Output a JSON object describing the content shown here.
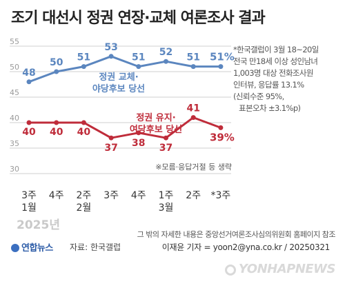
{
  "title": "조기 대선시 정권 연장·교체 여론조사 결과",
  "notes": [
    "*한국갤럽이 3월 18~20일",
    "전국 만18세 이상 성인남녀",
    "1,003명 대상 전화조사원",
    "인터뷰, 응답률 13.1%",
    "(신뢰수준 95%,",
    "표본오차 ±3.1%p)"
  ],
  "year_label": "2025년",
  "nonresponse_note": "※모름·응답거절 등 생략",
  "footnote": "그 밖의 자세한 내용은 중앙선거여론조사심의위원회 홈페이지 참조",
  "logo_text": "연합뉴스",
  "source": "자료: 한국갤럽",
  "author": "이재윤 기자 = yoon2@yna.co.kr / 20250321",
  "watermark": "YONHAPNEWS",
  "colors": {
    "blue": "#5b86bf",
    "red": "#bf2c3a",
    "grid": "#cfcfcf"
  },
  "chart_data": {
    "type": "line",
    "categories": [
      [
        "3주",
        "1월"
      ],
      [
        "4주",
        ""
      ],
      [
        "2주",
        "2월"
      ],
      [
        "3주",
        ""
      ],
      [
        "4주",
        ""
      ],
      [
        "1주",
        "3월"
      ],
      [
        "2주",
        ""
      ],
      [
        "*3주",
        ""
      ]
    ],
    "yticks": [
      30,
      35,
      40,
      45,
      50,
      55
    ],
    "ylim": [
      30,
      55
    ],
    "grid": true,
    "series": [
      {
        "name": "정권 교체·야당후보 당선",
        "label_lines": [
          "정권 교체·",
          "야당후보 당선"
        ],
        "color": "#5b86bf",
        "values": [
          48,
          50,
          51,
          53,
          51,
          52,
          51,
          51
        ],
        "value_labels": [
          "48",
          "50",
          "51",
          "53",
          "51",
          "52",
          "51",
          "51%"
        ]
      },
      {
        "name": "정권 유지·여당후보 당선",
        "label_lines": [
          "정권 유지·",
          "여당후보 당선"
        ],
        "color": "#bf2c3a",
        "values": [
          40,
          40,
          40,
          37,
          38,
          37,
          41,
          39
        ],
        "value_labels": [
          "40",
          "40",
          "40",
          "37",
          "38",
          "37",
          "41",
          "39%"
        ]
      }
    ]
  }
}
